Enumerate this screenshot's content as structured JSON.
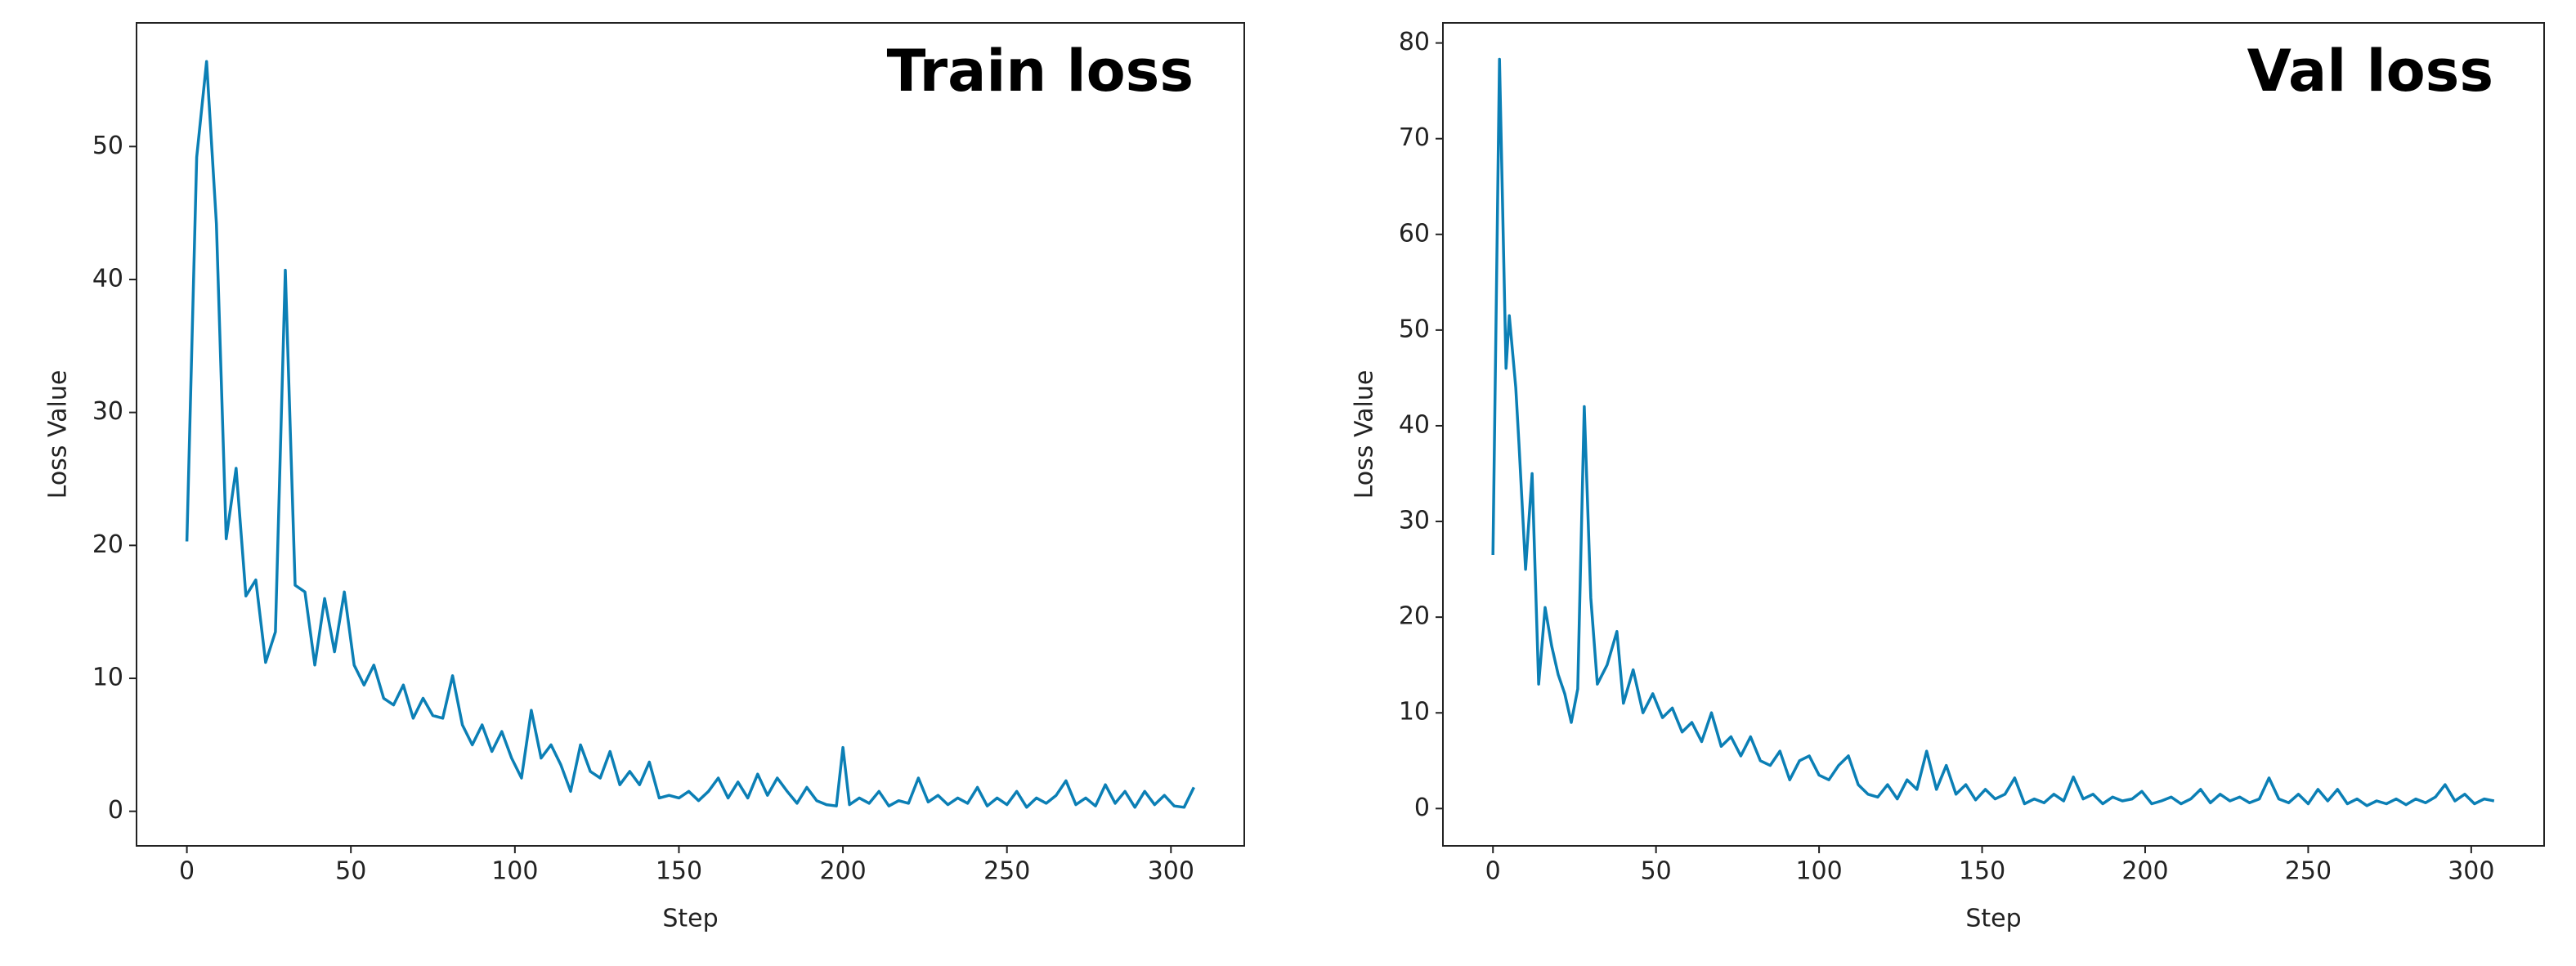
{
  "chart_data": [
    {
      "type": "line",
      "title": "Train loss",
      "x_label": "Step",
      "y_label": "Loss Value",
      "color": "#0b7fb5",
      "xlim": [
        -15.35,
        322.35
      ],
      "ylim": [
        -2.6,
        59.3
      ],
      "xticks": [
        0,
        50,
        100,
        150,
        200,
        250,
        300
      ],
      "yticks": [
        0,
        10,
        20,
        30,
        40,
        50
      ],
      "x": [
        0,
        3,
        6,
        9,
        12,
        15,
        18,
        21,
        24,
        27,
        30,
        33,
        36,
        39,
        42,
        45,
        48,
        51,
        54,
        57,
        60,
        63,
        66,
        69,
        72,
        75,
        78,
        81,
        84,
        87,
        90,
        93,
        96,
        99,
        102,
        105,
        108,
        111,
        114,
        117,
        120,
        123,
        126,
        129,
        132,
        135,
        138,
        141,
        144,
        147,
        150,
        153,
        156,
        159,
        162,
        165,
        168,
        171,
        174,
        177,
        180,
        183,
        186,
        189,
        192,
        195,
        198,
        200,
        202,
        205,
        208,
        211,
        214,
        217,
        220,
        223,
        226,
        229,
        232,
        235,
        238,
        241,
        244,
        247,
        250,
        253,
        256,
        259,
        262,
        265,
        268,
        271,
        274,
        277,
        280,
        283,
        286,
        289,
        292,
        295,
        298,
        301,
        304,
        307
      ],
      "values": [
        20.3,
        49.2,
        56.4,
        44.2,
        20.5,
        25.8,
        16.2,
        17.4,
        11.2,
        13.5,
        40.7,
        17.0,
        16.5,
        11.0,
        16.0,
        12.0,
        16.5,
        11.0,
        9.5,
        11.0,
        8.5,
        8.0,
        9.5,
        7.0,
        8.5,
        7.2,
        7.0,
        10.2,
        6.5,
        5.0,
        6.5,
        4.5,
        6.0,
        4.0,
        2.5,
        7.6,
        4.0,
        5.0,
        3.5,
        1.5,
        5.0,
        3.0,
        2.5,
        4.5,
        2.0,
        3.0,
        2.0,
        3.7,
        1.0,
        1.2,
        1.0,
        1.5,
        0.8,
        1.5,
        2.5,
        1.0,
        2.2,
        1.0,
        2.8,
        1.2,
        2.5,
        1.5,
        0.6,
        1.8,
        0.8,
        0.5,
        0.4,
        4.8,
        0.5,
        1.0,
        0.6,
        1.5,
        0.4,
        0.8,
        0.6,
        2.5,
        0.7,
        1.2,
        0.5,
        1.0,
        0.6,
        1.8,
        0.4,
        1.0,
        0.5,
        1.5,
        0.3,
        1.0,
        0.6,
        1.2,
        2.3,
        0.5,
        1.0,
        0.4,
        2.0,
        0.6,
        1.5,
        0.3,
        1.5,
        0.5,
        1.2,
        0.4,
        0.3,
        1.8
      ]
    },
    {
      "type": "line",
      "title": "Val loss",
      "x_label": "Step",
      "y_label": "Loss Value",
      "color": "#0b7fb5",
      "xlim": [
        -15.35,
        322.35
      ],
      "ylim": [
        -3.9,
        82.1
      ],
      "xticks": [
        0,
        50,
        100,
        150,
        200,
        250,
        300
      ],
      "yticks": [
        0,
        10,
        20,
        30,
        40,
        50,
        60,
        70,
        80
      ],
      "x": [
        0,
        2,
        4,
        5,
        7,
        8,
        10,
        12,
        14,
        16,
        18,
        20,
        22,
        24,
        26,
        28,
        30,
        32,
        35,
        38,
        40,
        43,
        46,
        49,
        52,
        55,
        58,
        61,
        64,
        67,
        70,
        73,
        76,
        79,
        82,
        85,
        88,
        91,
        94,
        97,
        100,
        103,
        106,
        109,
        112,
        115,
        118,
        121,
        124,
        127,
        130,
        133,
        136,
        139,
        142,
        145,
        148,
        151,
        154,
        157,
        160,
        163,
        166,
        169,
        172,
        175,
        178,
        181,
        184,
        187,
        190,
        193,
        196,
        199,
        202,
        205,
        208,
        211,
        214,
        217,
        220,
        223,
        226,
        229,
        232,
        235,
        238,
        241,
        244,
        247,
        250,
        253,
        256,
        259,
        262,
        265,
        268,
        271,
        274,
        277,
        280,
        283,
        286,
        289,
        292,
        295,
        298,
        301,
        304,
        307
      ],
      "values": [
        26.5,
        78.3,
        46,
        51.5,
        44,
        38,
        25,
        35,
        13,
        21,
        17,
        14,
        12,
        9,
        12.5,
        42,
        22,
        13,
        15,
        18.5,
        11,
        14.5,
        10,
        12,
        9.5,
        10.5,
        8,
        9,
        7,
        10,
        6.5,
        7.5,
        5.5,
        7.5,
        5,
        4.5,
        6,
        3,
        5,
        5.5,
        3.5,
        3,
        4.5,
        5.5,
        2.5,
        1.5,
        1.2,
        2.5,
        1.0,
        3,
        2,
        6,
        2,
        4.5,
        1.5,
        2.5,
        0.9,
        2.0,
        1.0,
        1.5,
        3.2,
        0.5,
        1.0,
        0.6,
        1.5,
        0.8,
        3.3,
        1.0,
        1.5,
        0.5,
        1.2,
        0.8,
        1.0,
        1.8,
        0.5,
        0.8,
        1.2,
        0.5,
        1.0,
        2.0,
        0.6,
        1.5,
        0.8,
        1.2,
        0.6,
        1.0,
        3.2,
        1.0,
        0.6,
        1.5,
        0.5,
        2.0,
        0.8,
        2.0,
        0.5,
        1.0,
        0.3,
        0.8,
        0.5,
        1.0,
        0.4,
        1.0,
        0.6,
        1.2,
        2.5,
        0.8,
        1.5,
        0.5,
        1.0,
        0.8
      ]
    }
  ]
}
